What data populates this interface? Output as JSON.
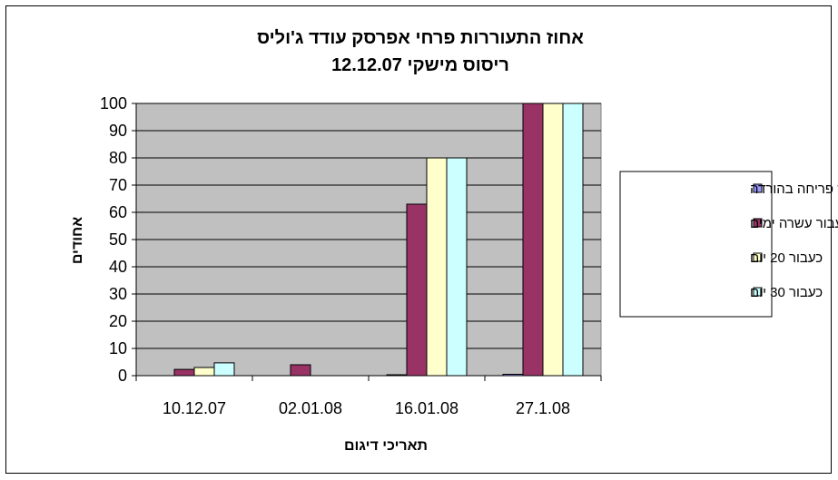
{
  "chart_data": {
    "type": "bar",
    "title": "אחוז התעוררות פרחי אפרסק עודד ג'וליס",
    "subtitle": "ריסוס מישקי 12.12.07",
    "xlabel": "תאריכי דיגום",
    "ylabel": "אחודים",
    "categories": [
      "10.12.07",
      "02.01.08",
      "16.01.08",
      "27.1.08"
    ],
    "ylim": [
      0,
      100
    ],
    "yticks": [
      0,
      10,
      20,
      30,
      40,
      50,
      60,
      70,
      80,
      90,
      100
    ],
    "grid": true,
    "legend_position": "right",
    "series": [
      {
        "name": "אחוז פריחה בהורדה",
        "color": "#9999ff",
        "values": [
          0,
          0,
          0.3,
          0.5
        ]
      },
      {
        "name": "כעבור עשרה ימים",
        "color": "#993366",
        "values": [
          2.3,
          4,
          63,
          100
        ]
      },
      {
        "name": "כעבור 20 יום",
        "color": "#ffffcc",
        "values": [
          3,
          0,
          80,
          100
        ]
      },
      {
        "name": "כעבור 30 יום",
        "color": "#ccffff",
        "values": [
          4.7,
          0,
          80,
          100
        ]
      }
    ],
    "plot_background": "#c0c0c0"
  }
}
